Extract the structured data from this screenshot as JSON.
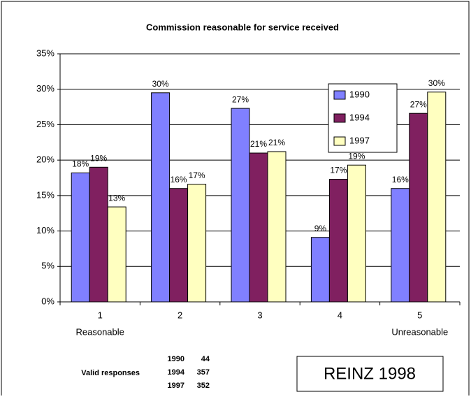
{
  "chart_data": {
    "type": "bar",
    "title": "Commission reasonable for service received",
    "categories": [
      "1",
      "2",
      "3",
      "4",
      "5"
    ],
    "category_notes": [
      {
        "index": 0,
        "text": "Reasonable"
      },
      {
        "index": 4,
        "text": "Unreasonable"
      }
    ],
    "series": [
      {
        "name": "1990",
        "color": "#8080ff",
        "values": [
          18.2,
          29.5,
          27.3,
          9.1,
          16
        ],
        "value_labels": [
          "18%",
          "30%",
          "27%",
          "9%",
          "16%"
        ]
      },
      {
        "name": "1994",
        "color": "#802060",
        "values": [
          19,
          16,
          21,
          17.3,
          26.6
        ],
        "value_labels": [
          "19%",
          "16%",
          "21%",
          "17%",
          "27%"
        ]
      },
      {
        "name": "1997",
        "color": "#ffffc0",
        "values": [
          13.4,
          16.6,
          21.2,
          19.3,
          29.6
        ],
        "value_labels": [
          "13%",
          "17%",
          "21%",
          "19%",
          "30%"
        ]
      }
    ],
    "ylim": [
      0,
      35
    ],
    "yticks": [
      {
        "value": 0,
        "label": "0%"
      },
      {
        "value": 5,
        "label": "5%"
      },
      {
        "value": 10,
        "label": "10%"
      },
      {
        "value": 15,
        "label": "15%"
      },
      {
        "value": 20,
        "label": "20%"
      },
      {
        "value": 25,
        "label": "25%"
      },
      {
        "value": 30,
        "label": "30%"
      },
      {
        "value": 35,
        "label": "35%"
      }
    ],
    "grid": true,
    "legend": "upper right"
  },
  "valid_responses": {
    "label": "Valid responses",
    "rows": [
      [
        "1990",
        "44"
      ],
      [
        "1994",
        "357"
      ],
      [
        "1997",
        "352"
      ]
    ]
  },
  "source": "REINZ 1998"
}
